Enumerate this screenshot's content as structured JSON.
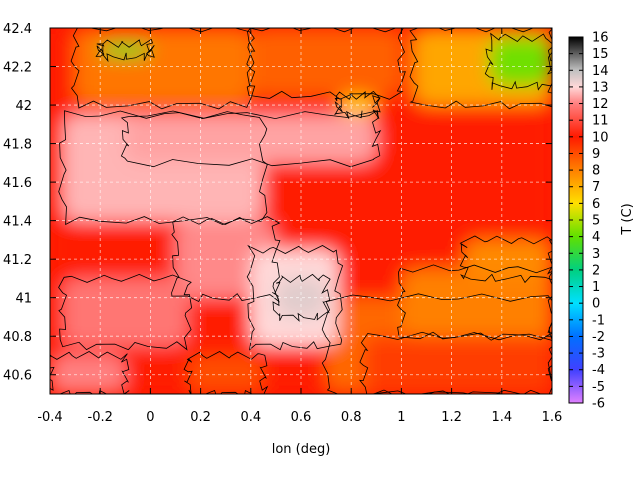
{
  "chart_data": {
    "type": "heatmap",
    "title": "",
    "xlabel": "lon (deg)",
    "ylabel": "",
    "colorbar_label": "T (C)",
    "xlim": [
      -0.4,
      1.6
    ],
    "ylim": [
      40.5,
      42.4
    ],
    "x_ticks": [
      "-0.4",
      "-0.2",
      "0",
      "0.2",
      "0.4",
      "0.6",
      "0.8",
      "1",
      "1.2",
      "1.4",
      "1.6"
    ],
    "y_ticks": [
      "40.6",
      "40.8",
      "41",
      "41.2",
      "41.4",
      "41.6",
      "41.8",
      "42",
      "42.2",
      "42.4"
    ],
    "colorbar_range": [
      -6,
      16
    ],
    "colorbar_ticks": [
      "-6",
      "-5",
      "-4",
      "-3",
      "-2",
      "-1",
      "0",
      "1",
      "2",
      "3",
      "4",
      "5",
      "6",
      "7",
      "8",
      "9",
      "10",
      "11",
      "12",
      "13",
      "14",
      "15",
      "16"
    ],
    "colorbar_stops": [
      {
        "t": -6,
        "color": "#e080ff"
      },
      {
        "t": -4,
        "color": "#4040ff"
      },
      {
        "t": -2,
        "color": "#0070ff"
      },
      {
        "t": 0,
        "color": "#00e0ff"
      },
      {
        "t": 2,
        "color": "#00d080"
      },
      {
        "t": 4,
        "color": "#60e000"
      },
      {
        "t": 6,
        "color": "#ffe000"
      },
      {
        "t": 8,
        "color": "#ff8000"
      },
      {
        "t": 10,
        "color": "#ff1a00"
      },
      {
        "t": 12,
        "color": "#ff8080"
      },
      {
        "t": 13,
        "color": "#ffd8d8"
      },
      {
        "t": 14,
        "color": "#c0c0c0"
      },
      {
        "t": 15,
        "color": "#606060"
      },
      {
        "t": 16,
        "color": "#000000"
      }
    ],
    "grid": true,
    "field_regions": [
      {
        "lon": -0.4,
        "lat": 40.5,
        "lon2": 1.6,
        "lat2": 42.4,
        "t": 10.0
      },
      {
        "lon": 0.7,
        "lat": 40.5,
        "lon2": 1.6,
        "lat2": 41.0,
        "t": 8.5
      },
      {
        "lon": 0.85,
        "lat": 40.5,
        "lon2": 1.6,
        "lat2": 40.8,
        "t": 9.3
      },
      {
        "lon": 1.0,
        "lat": 40.8,
        "lon2": 1.6,
        "lat2": 41.15,
        "t": 8.0
      },
      {
        "lon": 1.25,
        "lat": 41.1,
        "lon2": 1.6,
        "lat2": 41.3,
        "t": 7.8
      },
      {
        "lon": -0.35,
        "lat": 41.4,
        "lon2": 0.45,
        "lat2": 41.95,
        "t": 12.6
      },
      {
        "lon": -0.1,
        "lat": 41.7,
        "lon2": 0.9,
        "lat2": 41.95,
        "t": 12.4
      },
      {
        "lon": 0.1,
        "lat": 41.0,
        "lon2": 0.5,
        "lat2": 41.4,
        "t": 12.1
      },
      {
        "lon": 0.4,
        "lat": 40.75,
        "lon2": 0.75,
        "lat2": 41.25,
        "t": 13.0
      },
      {
        "lon": 0.5,
        "lat": 40.9,
        "lon2": 0.7,
        "lat2": 41.1,
        "t": 13.5
      },
      {
        "lon": -0.35,
        "lat": 40.75,
        "lon2": 0.15,
        "lat2": 41.1,
        "t": 11.8
      },
      {
        "lon": -0.4,
        "lat": 40.5,
        "lon2": -0.1,
        "lat2": 40.7,
        "t": 12.0
      },
      {
        "lon": 0.15,
        "lat": 40.5,
        "lon2": 0.45,
        "lat2": 40.7,
        "t": 9.0
      },
      {
        "lon": -0.3,
        "lat": 42.0,
        "lon2": 0.4,
        "lat2": 42.4,
        "t": 8.2
      },
      {
        "lon": 0.4,
        "lat": 42.05,
        "lon2": 1.0,
        "lat2": 42.4,
        "t": 8.6
      },
      {
        "lon": 1.05,
        "lat": 42.0,
        "lon2": 1.6,
        "lat2": 42.4,
        "t": 7.2
      },
      {
        "lon": 1.35,
        "lat": 42.1,
        "lon2": 1.6,
        "lat2": 42.35,
        "t": 4.2
      },
      {
        "lon": -0.2,
        "lat": 42.25,
        "lon2": 0.0,
        "lat2": 42.32,
        "t": 3.5
      },
      {
        "lon": 0.75,
        "lat": 41.95,
        "lon2": 0.9,
        "lat2": 42.05,
        "t": 6.5
      }
    ]
  }
}
